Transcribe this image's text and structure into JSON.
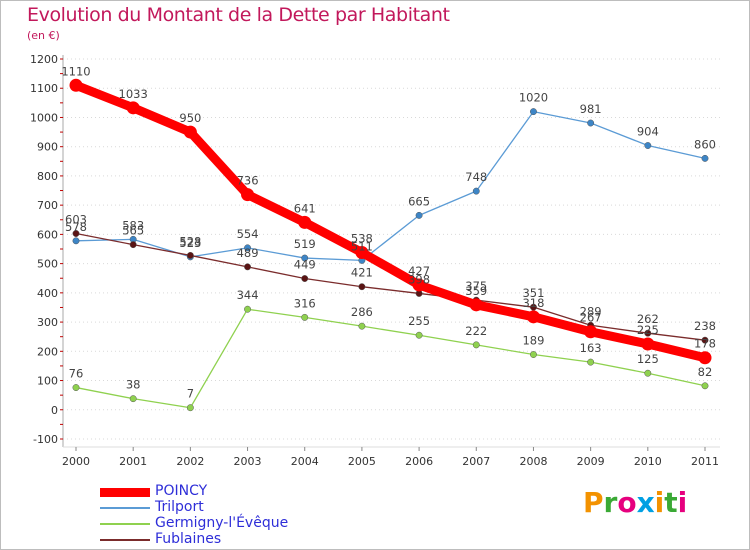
{
  "title": "Evolution du Montant de la Dette par Habitant",
  "subtitle": "(en €)",
  "logo_text": "Proxiti",
  "chart_data": {
    "type": "line",
    "title": "Evolution du Montant de la Dette par Habitant",
    "subtitle": "(en €)",
    "xlabel": "",
    "ylabel": "",
    "x": [
      "2000",
      "2001",
      "2002",
      "2003",
      "2004",
      "2005",
      "2006",
      "2007",
      "2008",
      "2009",
      "2010",
      "2011"
    ],
    "ylim": [
      -100,
      1200
    ],
    "yticks": [
      -100,
      0,
      100,
      200,
      300,
      400,
      500,
      600,
      700,
      800,
      900,
      1000,
      1100,
      1200
    ],
    "grid": true,
    "legend_position": "bottom-left",
    "series": [
      {
        "name": "POINCY",
        "color": "#ff0000",
        "values": [
          1110,
          1033,
          950,
          736,
          641,
          538,
          427,
          359,
          318,
          267,
          225,
          178
        ]
      },
      {
        "name": "Trilport",
        "color": "#5b9bd5",
        "values": [
          578,
          583,
          523,
          554,
          519,
          511,
          665,
          748,
          1020,
          981,
          904,
          860
        ]
      },
      {
        "name": "Germigny-l'Évêque",
        "color": "#8fd14f",
        "values": [
          76,
          38,
          7,
          344,
          316,
          286,
          255,
          222,
          189,
          163,
          125,
          82
        ]
      },
      {
        "name": "Fublaines",
        "color": "#7b2c2c",
        "values": [
          603,
          565,
          528,
          489,
          449,
          421,
          398,
          375,
          351,
          289,
          262,
          238
        ]
      }
    ]
  }
}
